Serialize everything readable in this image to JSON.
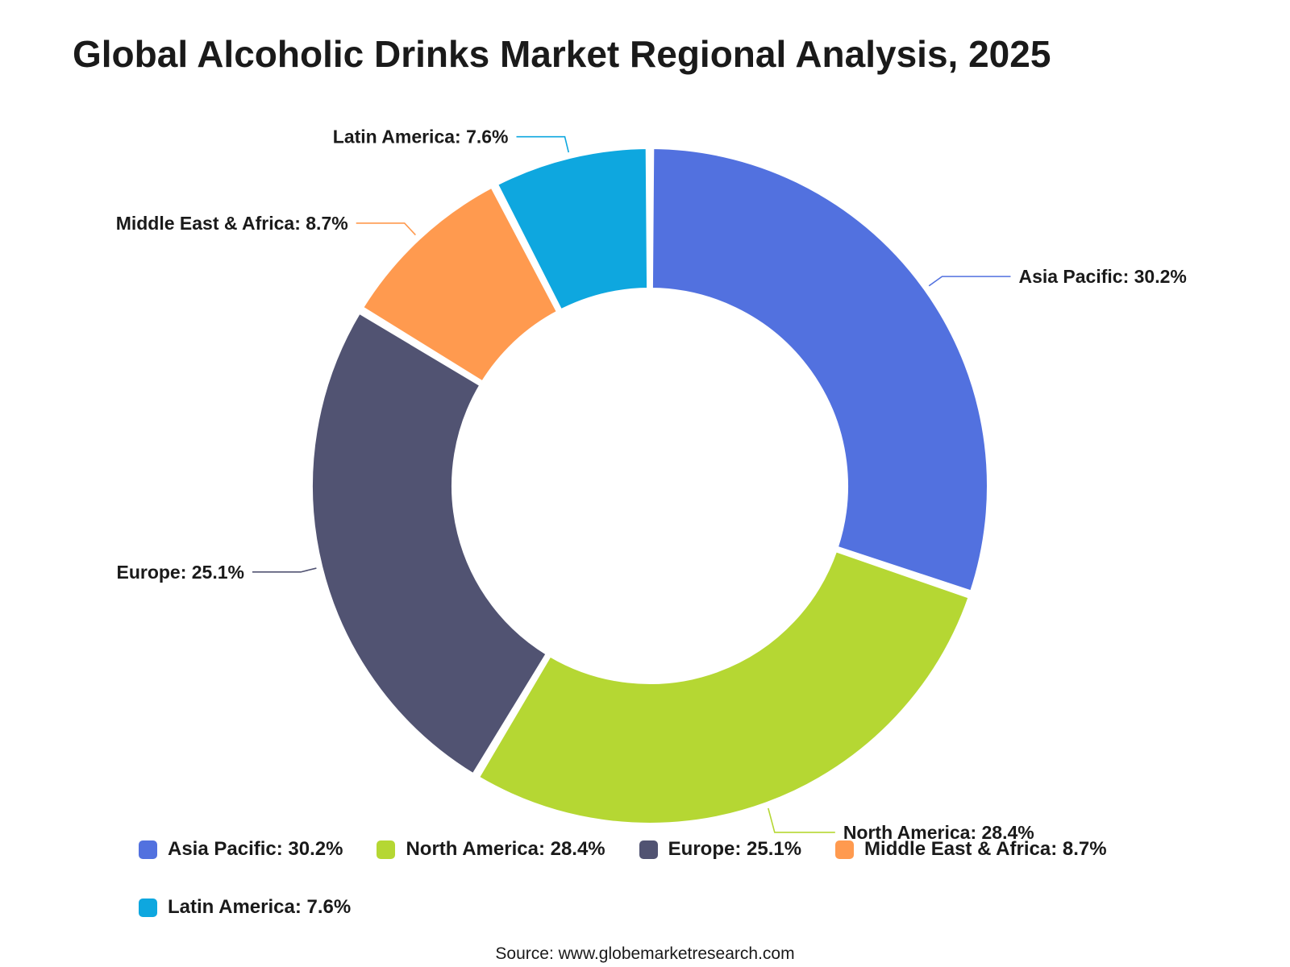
{
  "chart_data": {
    "type": "pie",
    "title": "Global Alcoholic Drinks Market Regional Analysis, 2025",
    "donut": true,
    "legend_position": "bottom",
    "categories": [
      "Asia Pacific",
      "North America",
      "Europe",
      "Middle East & Africa",
      "Latin America"
    ],
    "values": [
      30.2,
      28.4,
      25.1,
      8.7,
      7.6
    ],
    "unit": "%",
    "colors": [
      "#5271df",
      "#b5d733",
      "#515372",
      "#ff9a4f",
      "#0ea7df"
    ],
    "labels": [
      "Asia Pacific: 30.2%",
      "North America: 28.4%",
      "Europe: 25.1%",
      "Middle East & Africa: 8.7%",
      "Latin America: 7.6%"
    ],
    "source": "Source: www.globemarketresearch.com"
  }
}
